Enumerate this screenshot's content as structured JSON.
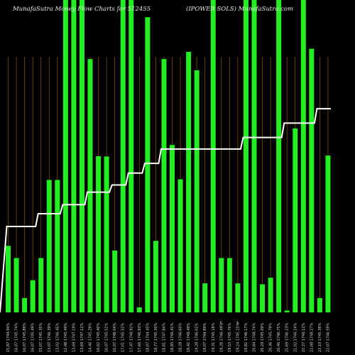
{
  "header": {
    "left_title": "MunafaSutra  Money Flow Charts for 512455",
    "right_title": "(IPOWER SOLS) MunafaSutra.com"
  },
  "colors": {
    "background": "#000000",
    "bar": "#22ee22",
    "line": "#ffffff",
    "grid": "#8a5a00"
  },
  "chart_data": {
    "type": "bar+line",
    "ylim": [
      0,
      100
    ],
    "x": [
      "15,87 1744.94%",
      "16,07 1745.74%",
      "16,07 1745.89%",
      "16,07 1745.49%",
      "15,07 1745.35%",
      "13,07 1746.39%",
      "13,02 1746.45%",
      "12,48 1745.49%",
      "13,69 1747.19%",
      "13,69 1747.12%",
      "14,46 1745.29%",
      "16,02 1745.40%",
      "16,07 1745.52%",
      "16,07 1748.04%",
      "17,01 1745.52%",
      "17,47 1748.92%",
      "17,66 1746.83%",
      "18,07 1744.45%",
      "18,77 1745.30%",
      "18,81 1747.84%",
      "18,85 1746.41%",
      "18,28 1746.60%",
      "18,42 1748.49%",
      "19,28 1746.02%",
      "19,07 1744.89%",
      "19,31 1745.18%",
      "19,28 1746.49%",
      "19,53 1745.76%",
      "19,24 1745.25%",
      "19,82 1746.17%",
      "20,84 1748.74%",
      "20,29 1745.09%",
      "20,36 1745.79%",
      "20,46 1746.75%",
      "21,69 1746.23%",
      "21,02 1746.24%",
      "22,27 1746.12%",
      "22,08 1748.27%",
      "22,10 1745.38%",
      "22,07 1746.59%"
    ],
    "bar_values": [
      21.3,
      17.4,
      4.6,
      10.3,
      17.4,
      42.4,
      42.4,
      100,
      100,
      100,
      81.1,
      50.0,
      49.9,
      19.8,
      100,
      100,
      1.6,
      94.5,
      22.9,
      81.1,
      53.6,
      42.6,
      83.4,
      77.5,
      9.3,
      100,
      17.4,
      17.4,
      9.3,
      100,
      100,
      9.0,
      11.1,
      100,
      0.6,
      58.9,
      100,
      84.4,
      4.6,
      50.2
    ],
    "line_values": [
      27.5,
      27.5,
      27.5,
      27.5,
      31.6,
      31.6,
      31.6,
      34.5,
      34.5,
      34.5,
      38.5,
      38.5,
      38.5,
      40.8,
      40.8,
      44.6,
      44.6,
      47.7,
      47.7,
      52.3,
      52.3,
      52.3,
      52.3,
      52.3,
      52.3,
      52.3,
      52.3,
      52.3,
      52.3,
      56.0,
      56.0,
      56.0,
      56.0,
      56.0,
      60.6,
      60.6,
      60.6,
      60.6,
      65.2,
      65.2
    ],
    "markers": [
      {
        "index": 26,
        "text": "€"
      },
      {
        "index": 28,
        "text": "$"
      }
    ],
    "grid": true
  }
}
